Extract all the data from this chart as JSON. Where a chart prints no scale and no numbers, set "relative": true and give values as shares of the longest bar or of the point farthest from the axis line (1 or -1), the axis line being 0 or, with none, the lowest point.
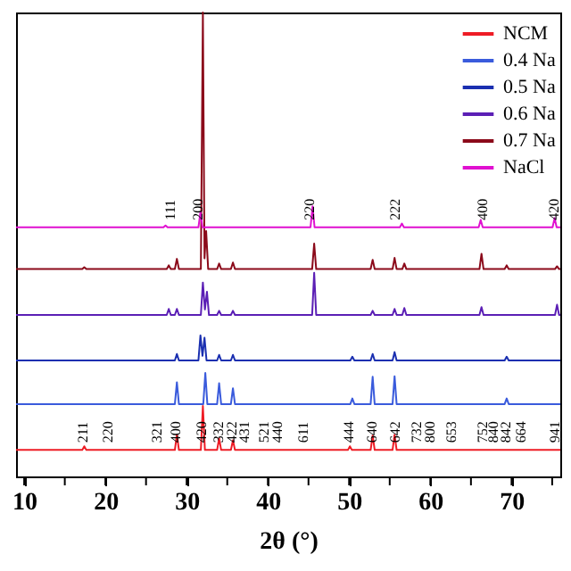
{
  "chart_data": {
    "type": "line",
    "relative": true,
    "xlabel": "2θ (°)",
    "xlim": [
      9,
      76
    ],
    "xticks": [
      10,
      {
        "value": 15,
        "label": null
      },
      20,
      {
        "value": 25,
        "label": null
      },
      30,
      {
        "value": 35,
        "label": null
      },
      40,
      {
        "value": 45,
        "label": null
      },
      50,
      {
        "value": 55,
        "label": null
      },
      60,
      {
        "value": 65,
        "label": null
      },
      70,
      {
        "value": 75,
        "label": null
      }
    ],
    "grid": false,
    "legend": "top right",
    "marker": "none",
    "line_style": "solid",
    "series": [
      {
        "name": "NCM",
        "color": "#ee1c25",
        "x": [
          9,
          17.15,
          17.4,
          17.65,
          28.55,
          28.8,
          29.05,
          31.75,
          32.0,
          32.25,
          33.75,
          34.0,
          34.25,
          35.45,
          35.7,
          35.95,
          49.85,
          50.1,
          50.35,
          52.65,
          52.9,
          53.15,
          55.35,
          55.6,
          55.85,
          76
        ],
        "values": [
          0.057,
          0.057,
          0.065,
          0.057,
          0.057,
          0.09,
          0.057,
          0.057,
          0.152,
          0.057,
          0.057,
          0.082,
          0.057,
          0.057,
          0.078,
          0.057,
          0.057,
          0.065,
          0.057,
          0.057,
          0.088,
          0.057,
          0.057,
          0.09,
          0.057,
          0.057
        ]
      },
      {
        "name": "0.4 Na",
        "color": "#3a5bdc",
        "x": [
          9,
          28.55,
          28.8,
          29.05,
          32.05,
          32.3,
          32.55,
          33.75,
          34.0,
          34.25,
          35.45,
          35.7,
          35.95,
          50.15,
          50.4,
          50.65,
          52.65,
          52.9,
          53.15,
          55.35,
          55.6,
          55.85,
          69.15,
          69.4,
          69.65,
          76
        ],
        "values": [
          0.156,
          0.156,
          0.203,
          0.156,
          0.156,
          0.223,
          0.156,
          0.156,
          0.201,
          0.156,
          0.156,
          0.19,
          0.156,
          0.156,
          0.168,
          0.156,
          0.156,
          0.215,
          0.156,
          0.156,
          0.216,
          0.156,
          0.156,
          0.168,
          0.156,
          0.156
        ]
      },
      {
        "name": "0.5 Na",
        "color": "#1a2fb0",
        "x": [
          9,
          28.55,
          28.8,
          29.05,
          31.45,
          31.7,
          31.95,
          32.2,
          32.45,
          33.75,
          34.0,
          34.25,
          35.45,
          35.7,
          35.95,
          50.15,
          50.4,
          50.65,
          52.65,
          52.9,
          53.15,
          55.35,
          55.6,
          55.85,
          69.15,
          69.4,
          69.65,
          76
        ],
        "values": [
          0.25,
          0.25,
          0.264,
          0.25,
          0.25,
          0.304,
          0.26,
          0.299,
          0.25,
          0.25,
          0.262,
          0.25,
          0.25,
          0.262,
          0.25,
          0.25,
          0.258,
          0.25,
          0.25,
          0.264,
          0.25,
          0.25,
          0.268,
          0.25,
          0.25,
          0.258,
          0.25,
          0.25
        ]
      },
      {
        "name": "0.6 Na",
        "color": "#5b1fb5",
        "x": [
          9,
          27.55,
          27.8,
          28.05,
          28.55,
          28.8,
          29.05,
          31.75,
          32.0,
          32.25,
          32.5,
          32.75,
          33.75,
          34.0,
          34.25,
          35.45,
          35.7,
          35.95,
          45.45,
          45.7,
          45.95,
          52.65,
          52.9,
          53.15,
          55.35,
          55.6,
          55.85,
          56.55,
          56.8,
          57.05,
          66.05,
          66.3,
          66.55,
          75.35,
          75.6,
          75.85,
          76
        ],
        "values": [
          0.348,
          0.348,
          0.361,
          0.348,
          0.348,
          0.361,
          0.348,
          0.348,
          0.418,
          0.36,
          0.398,
          0.348,
          0.348,
          0.357,
          0.348,
          0.348,
          0.357,
          0.348,
          0.348,
          0.439,
          0.348,
          0.348,
          0.357,
          0.348,
          0.348,
          0.361,
          0.348,
          0.348,
          0.363,
          0.348,
          0.348,
          0.365,
          0.348,
          0.348,
          0.37,
          0.348,
          0.348
        ]
      },
      {
        "name": "0.7 Na",
        "color": "#8b0a1a",
        "x": [
          9,
          17.15,
          17.4,
          17.65,
          27.55,
          27.8,
          28.05,
          28.55,
          28.8,
          29.05,
          31.75,
          32.0,
          32.2,
          32.4,
          32.65,
          33.75,
          34.0,
          34.25,
          35.45,
          35.7,
          35.95,
          45.45,
          45.7,
          45.95,
          52.65,
          52.9,
          53.15,
          55.35,
          55.6,
          55.85,
          56.55,
          56.8,
          57.05,
          66.05,
          66.3,
          66.55,
          69.15,
          69.4,
          69.65,
          75.35,
          75.6,
          75.85,
          76
        ],
        "values": [
          0.447,
          0.447,
          0.451,
          0.447,
          0.447,
          0.455,
          0.447,
          0.447,
          0.469,
          0.447,
          0.447,
          1.0,
          0.47,
          0.529,
          0.447,
          0.447,
          0.459,
          0.447,
          0.447,
          0.461,
          0.447,
          0.447,
          0.502,
          0.447,
          0.447,
          0.467,
          0.447,
          0.447,
          0.471,
          0.447,
          0.447,
          0.459,
          0.447,
          0.447,
          0.48,
          0.447,
          0.447,
          0.455,
          0.447,
          0.447,
          0.453,
          0.447,
          0.447
        ]
      },
      {
        "name": "NaCl",
        "color": "#e010d0",
        "x": [
          9,
          27.15,
          27.4,
          27.65,
          31.45,
          31.7,
          31.95,
          45.25,
          45.5,
          45.75,
          56.25,
          56.5,
          56.75,
          65.95,
          66.2,
          66.45,
          75.05,
          75.3,
          75.55,
          76
        ],
        "values": [
          0.537,
          0.537,
          0.541,
          0.537,
          0.537,
          0.57,
          0.537,
          0.537,
          0.582,
          0.537,
          0.537,
          0.545,
          0.537,
          0.537,
          0.553,
          0.537,
          0.537,
          0.557,
          0.537,
          0.537
        ]
      }
    ],
    "annotations": [
      {
        "text": "111",
        "x": 28.1,
        "y": 0.537
      },
      {
        "text": "200",
        "x": 31.5,
        "y": 0.537
      },
      {
        "text": "220",
        "x": 45.3,
        "y": 0.537
      },
      {
        "text": "222",
        "x": 55.8,
        "y": 0.537
      },
      {
        "text": "400",
        "x": 66.6,
        "y": 0.537
      },
      {
        "text": "420",
        "x": 75.3,
        "y": 0.537
      },
      {
        "text": "211",
        "x": 17.4,
        "y": 0.057
      },
      {
        "text": "220",
        "x": 20.4,
        "y": 0.057
      },
      {
        "text": "321",
        "x": 26.5,
        "y": 0.057
      },
      {
        "text": "400",
        "x": 28.8,
        "y": 0.057
      },
      {
        "text": "420",
        "x": 32.0,
        "y": 0.057
      },
      {
        "text": "332",
        "x": 34.0,
        "y": 0.057
      },
      {
        "text": "422",
        "x": 35.7,
        "y": 0.057
      },
      {
        "text": "431",
        "x": 37.2,
        "y": 0.057
      },
      {
        "text": "521",
        "x": 39.6,
        "y": 0.057
      },
      {
        "text": "440",
        "x": 41.3,
        "y": 0.057
      },
      {
        "text": "611",
        "x": 44.5,
        "y": 0.057
      },
      {
        "text": "444",
        "x": 50.1,
        "y": 0.057
      },
      {
        "text": "640",
        "x": 52.9,
        "y": 0.057
      },
      {
        "text": "642",
        "x": 55.8,
        "y": 0.057
      },
      {
        "text": "732",
        "x": 58.4,
        "y": 0.057
      },
      {
        "text": "800",
        "x": 60.1,
        "y": 0.057
      },
      {
        "text": "653",
        "x": 62.7,
        "y": 0.057
      },
      {
        "text": "752",
        "x": 66.6,
        "y": 0.057
      },
      {
        "text": "840",
        "x": 67.9,
        "y": 0.057
      },
      {
        "text": "842",
        "x": 69.4,
        "y": 0.057
      },
      {
        "text": "664",
        "x": 71.3,
        "y": 0.057
      },
      {
        "text": "941",
        "x": 75.4,
        "y": 0.057
      }
    ]
  }
}
